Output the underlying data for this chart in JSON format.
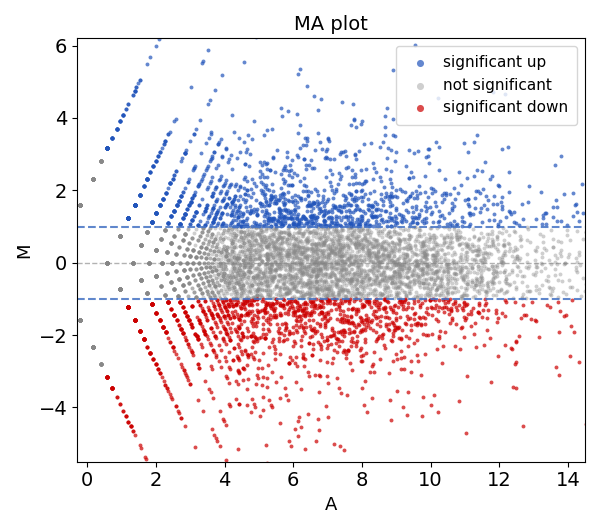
{
  "title": "MA plot",
  "xlabel": "A",
  "ylabel": "M",
  "title_fontsize": 14,
  "label_fontsize": 13,
  "tick_fontsize": 14,
  "legend_fontsize": 11,
  "xlim": [
    -0.3,
    14.5
  ],
  "ylim": [
    -5.5,
    6.2
  ],
  "hline_threshold": 1.0,
  "hline_color_blue": "#4472C4",
  "hline_color_gray": "gray",
  "color_up": "#2255bb",
  "color_ns": "#888888",
  "color_down": "#cc0000",
  "marker_size": 8,
  "seed": 42,
  "n_samples_per_condition": 1,
  "n_genes": 8000
}
